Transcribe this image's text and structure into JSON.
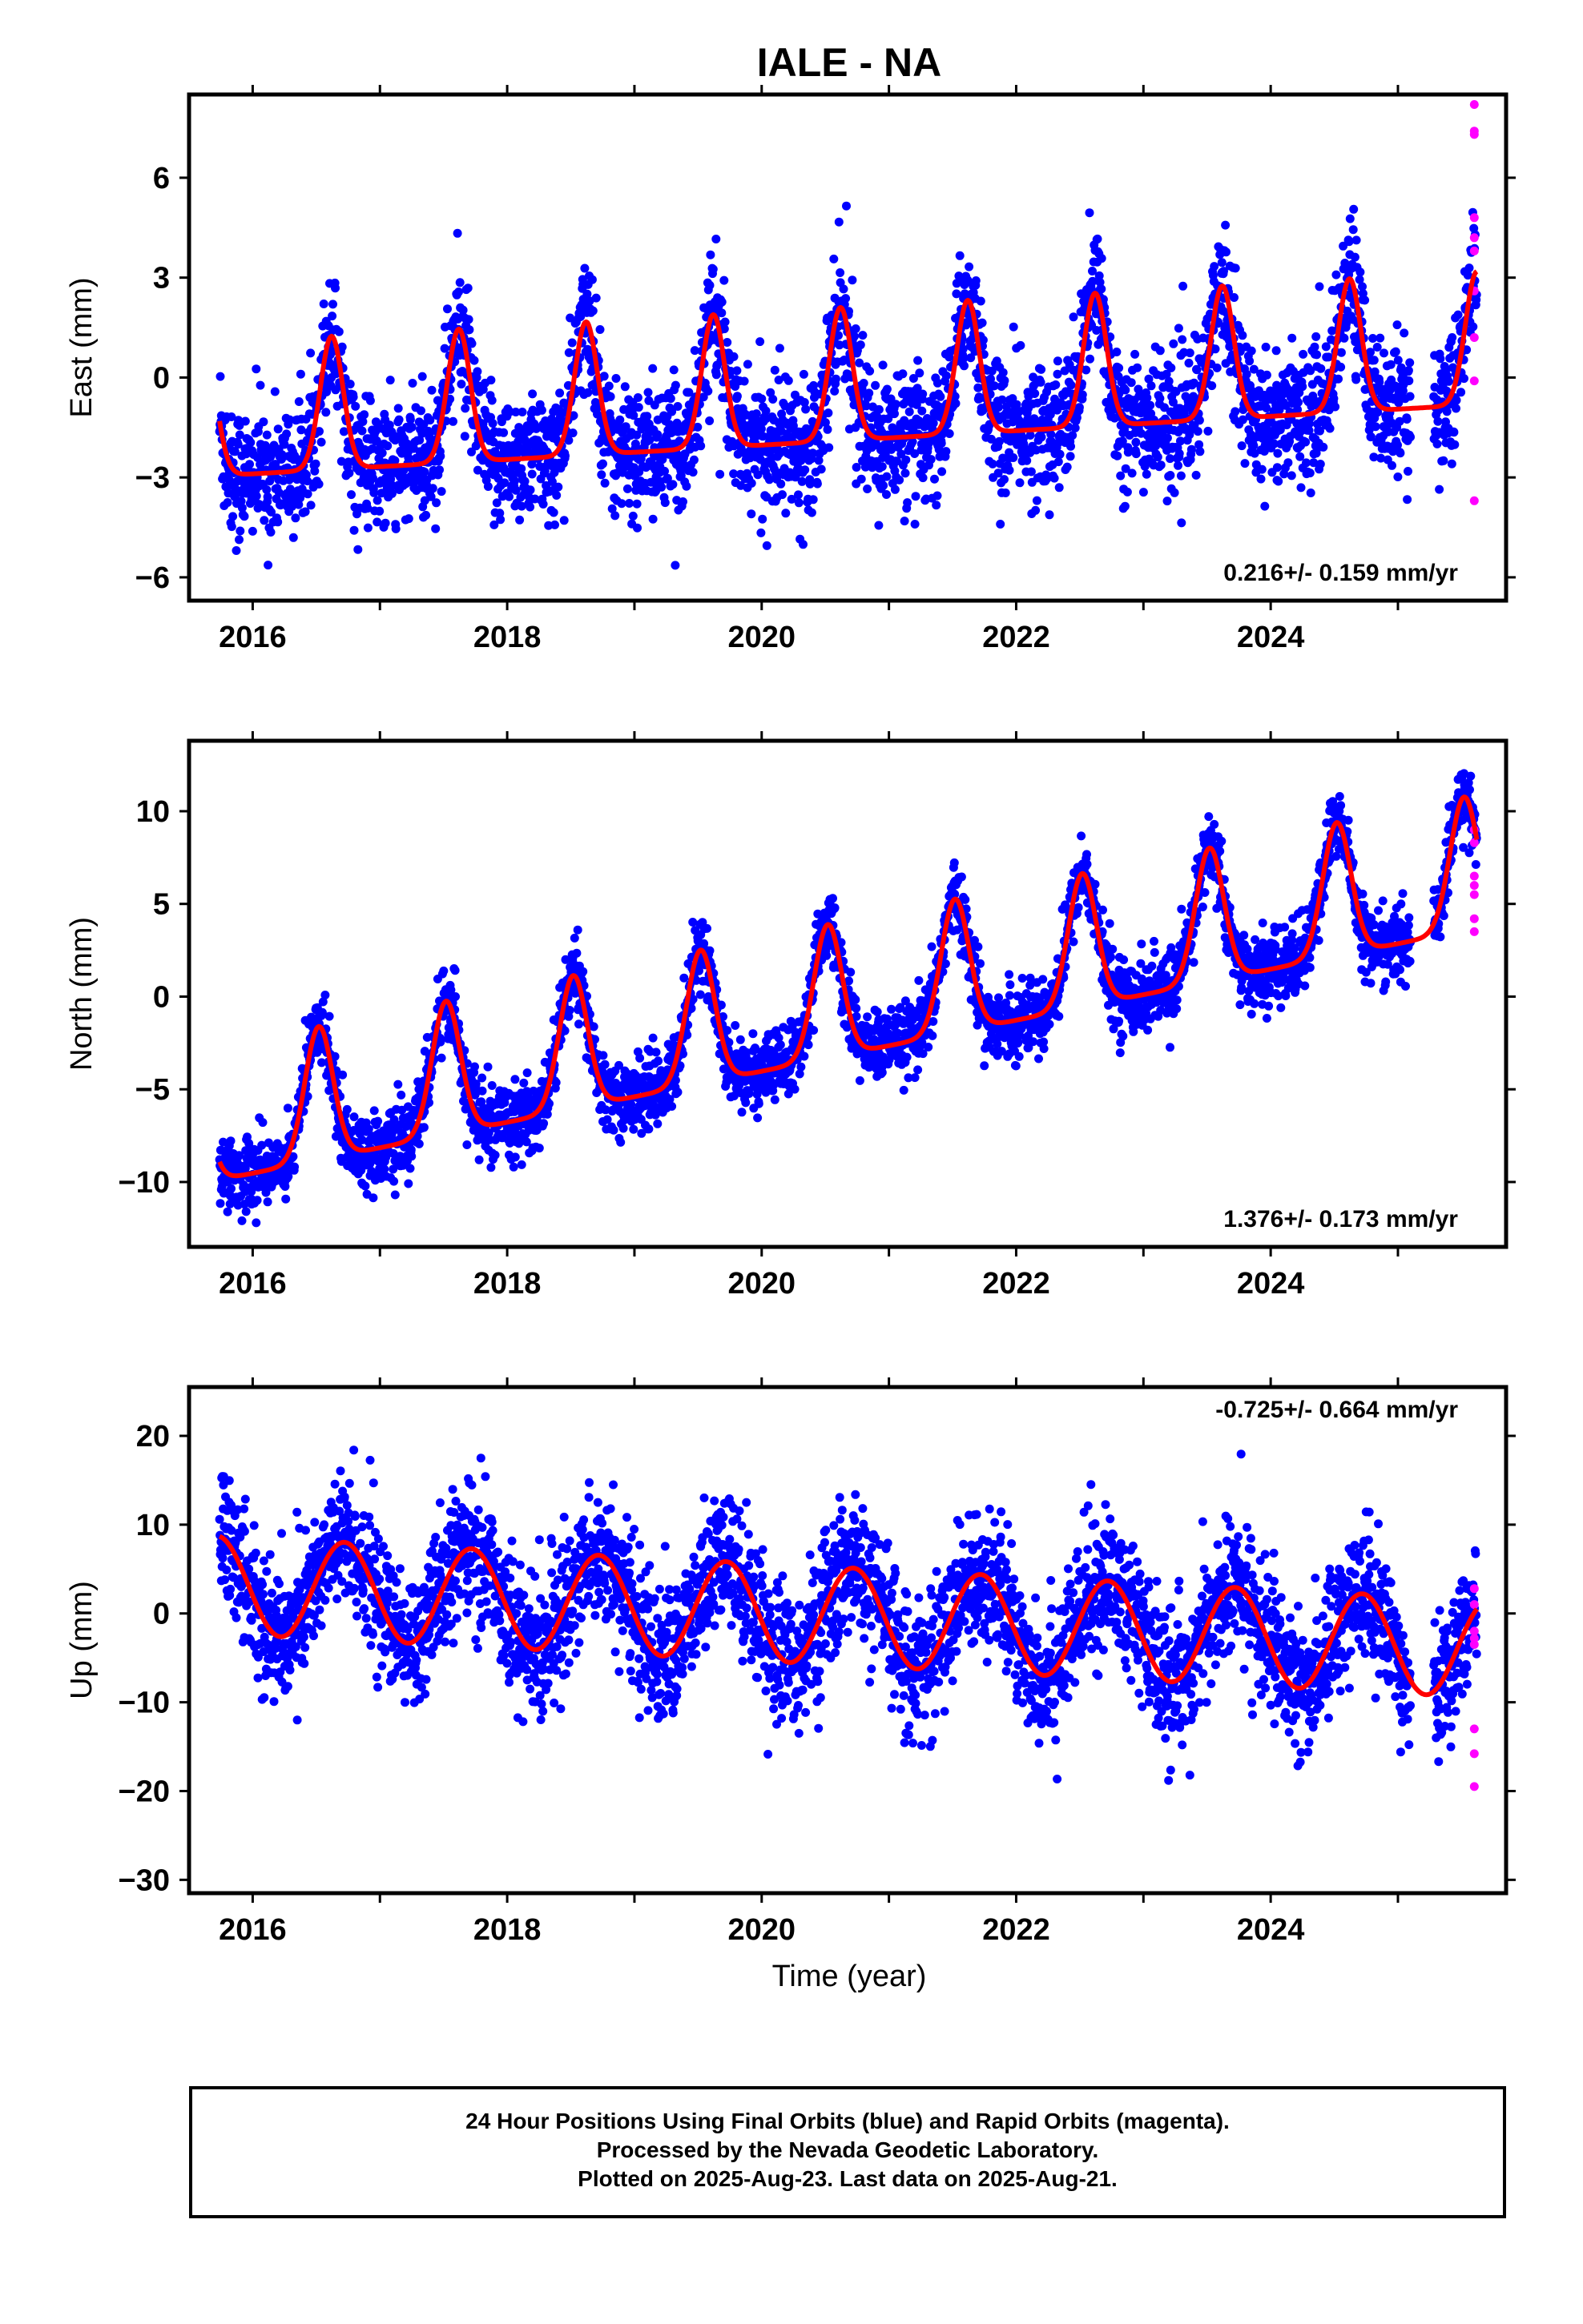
{
  "title": "IALE - NA",
  "xlabel": "Time (year)",
  "footer": {
    "line1": "24 Hour Positions Using Final Orbits (blue) and Rapid Orbits (magenta).",
    "line2": "Processed by the Nevada Geodetic Laboratory.",
    "line3": "Plotted on 2025-Aug-23. Last data on 2025-Aug-21."
  },
  "colors": {
    "final": "#0000ff",
    "rapid": "#ff00ff",
    "fit": "#ff0000",
    "frame": "#000000"
  },
  "chart_data": [
    {
      "type": "scatter",
      "name": "east",
      "ylabel": "East (mm)",
      "rate": "0.216+/- 0.159 mm/yr",
      "xlim": [
        2015.5,
        2025.85
      ],
      "ylim": [
        -6.7,
        8.5
      ],
      "yticks": [
        -6,
        -3,
        0,
        3,
        6
      ],
      "xticks": [
        2016,
        2018,
        2020,
        2022,
        2024
      ],
      "trend": {
        "offset": -0.1,
        "rate": 0.216,
        "t0": 2020.6
      },
      "seasonal": {
        "amplitude": 2.2,
        "peak": 0.62,
        "width": 0.09,
        "base": -1.8
      },
      "scatter_sd": 1.0,
      "data_start": 2015.74,
      "data_end": 2025.62,
      "rapid_points": [
        {
          "x": 2025.6,
          "y": 8.2
        },
        {
          "x": 2025.6,
          "y": 7.4
        },
        {
          "x": 2025.6,
          "y": 7.3
        },
        {
          "x": 2025.6,
          "y": 4.8
        },
        {
          "x": 2025.6,
          "y": 4.2
        },
        {
          "x": 2025.6,
          "y": 3.8
        },
        {
          "x": 2025.6,
          "y": 2.6
        },
        {
          "x": 2025.6,
          "y": 1.2
        },
        {
          "x": 2025.6,
          "y": -0.1
        },
        {
          "x": 2025.6,
          "y": -3.7
        }
      ]
    },
    {
      "type": "scatter",
      "name": "north",
      "ylabel": "North (mm)",
      "rate": "1.376+/- 0.173 mm/yr",
      "xlim": [
        2015.5,
        2025.85
      ],
      "ylim": [
        -13.5,
        13.8
      ],
      "yticks": [
        -10,
        -5,
        0,
        5,
        10
      ],
      "xticks": [
        2016,
        2018,
        2020,
        2022,
        2024
      ],
      "trend": {
        "offset": 0.0,
        "rate": 1.376,
        "t0": 2020.6
      },
      "seasonal": {
        "amplitude": 4.0,
        "peak": 0.52,
        "width": 0.11,
        "base": -3.2
      },
      "scatter_sd": 1.0,
      "data_start": 2015.74,
      "data_end": 2025.62,
      "rapid_points": [
        {
          "x": 2025.6,
          "y": 9.0
        },
        {
          "x": 2025.6,
          "y": 8.3
        },
        {
          "x": 2025.6,
          "y": 6.5
        },
        {
          "x": 2025.6,
          "y": 6.0
        },
        {
          "x": 2025.6,
          "y": 5.5
        },
        {
          "x": 2025.6,
          "y": 4.2
        },
        {
          "x": 2025.6,
          "y": 3.5
        }
      ]
    },
    {
      "type": "scatter",
      "name": "up",
      "ylabel": "Up (mm)",
      "rate": "-0.725+/- 0.664 mm/yr",
      "xlim": [
        2015.5,
        2025.85
      ],
      "ylim": [
        -31.5,
        25.5
      ],
      "yticks": [
        -30,
        -20,
        -10,
        0,
        10,
        20
      ],
      "xticks": [
        2016,
        2018,
        2020,
        2022,
        2024
      ],
      "trend": {
        "offset": -0.3,
        "rate": -0.725,
        "t0": 2020.6
      },
      "sine": {
        "amplitude": 5.5,
        "peak": 0.72
      },
      "scatter_sd": 4.0,
      "data_start": 2015.74,
      "data_end": 2025.62,
      "rapid_points": [
        {
          "x": 2025.6,
          "y": 2.8
        },
        {
          "x": 2025.6,
          "y": 1.0
        },
        {
          "x": 2025.6,
          "y": -2.0
        },
        {
          "x": 2025.6,
          "y": -2.8
        },
        {
          "x": 2025.6,
          "y": -3.5
        },
        {
          "x": 2025.6,
          "y": -13.0
        },
        {
          "x": 2025.6,
          "y": -15.8
        },
        {
          "x": 2025.6,
          "y": -19.5
        }
      ]
    }
  ]
}
